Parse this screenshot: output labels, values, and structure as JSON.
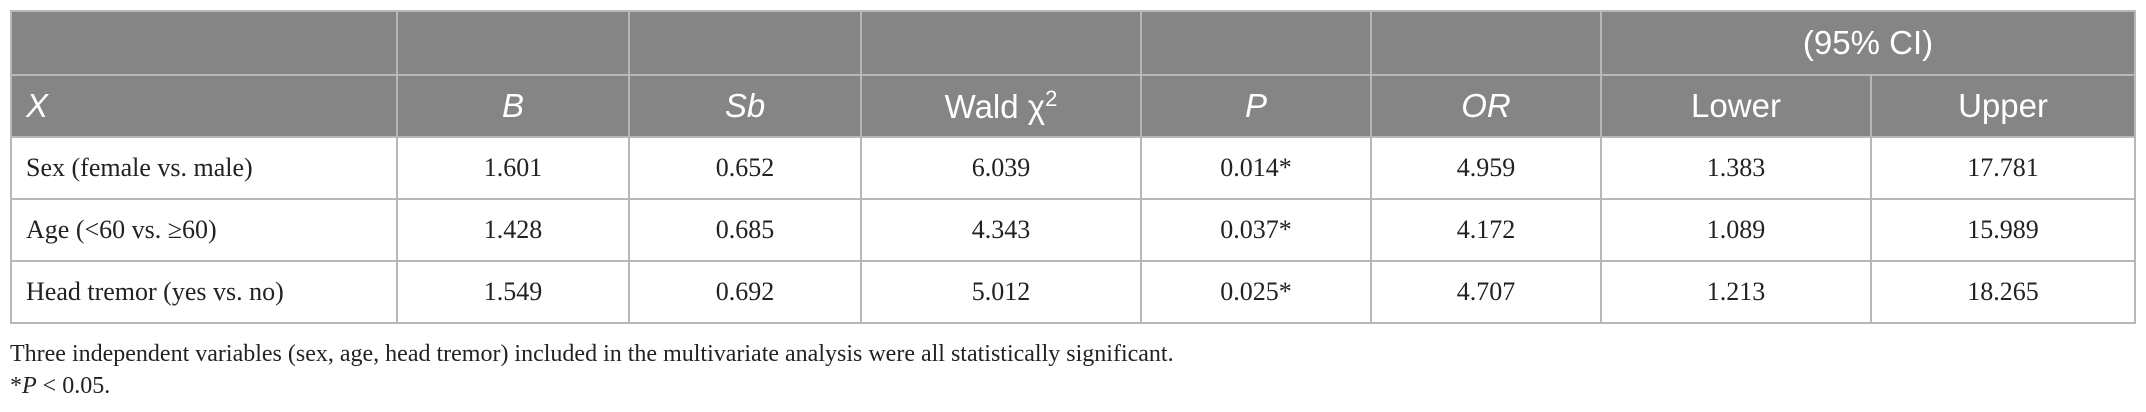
{
  "table": {
    "group_header": "(95% CI)",
    "columns": {
      "x": "X",
      "b": "B",
      "sb": "Sb",
      "wald_base": "Wald χ",
      "wald_sup": "2",
      "p": "P",
      "or": "OR",
      "lower": "Lower",
      "upper": "Upper"
    },
    "rows": [
      {
        "label": "Sex (female vs. male)",
        "b": "1.601",
        "sb": "0.652",
        "wald": "6.039",
        "p": "0.014*",
        "or": "4.959",
        "lower": "1.383",
        "upper": "17.781"
      },
      {
        "label": "Age (<60 vs. ≥60)",
        "b": "1.428",
        "sb": "0.685",
        "wald": "4.343",
        "p": "0.037*",
        "or": "4.172",
        "lower": "1.089",
        "upper": "15.989"
      },
      {
        "label": "Head tremor (yes vs. no)",
        "b": "1.549",
        "sb": "0.692",
        "wald": "5.012",
        "p": "0.025*",
        "or": "4.707",
        "lower": "1.213",
        "upper": "18.265"
      }
    ]
  },
  "notes": {
    "line1": "Three independent variables (sex, age, head tremor) included in the multivariate analysis were all statistically significant.",
    "footnote_star": "*",
    "footnote_p": "P",
    "footnote_rest": " < 0.05."
  }
}
